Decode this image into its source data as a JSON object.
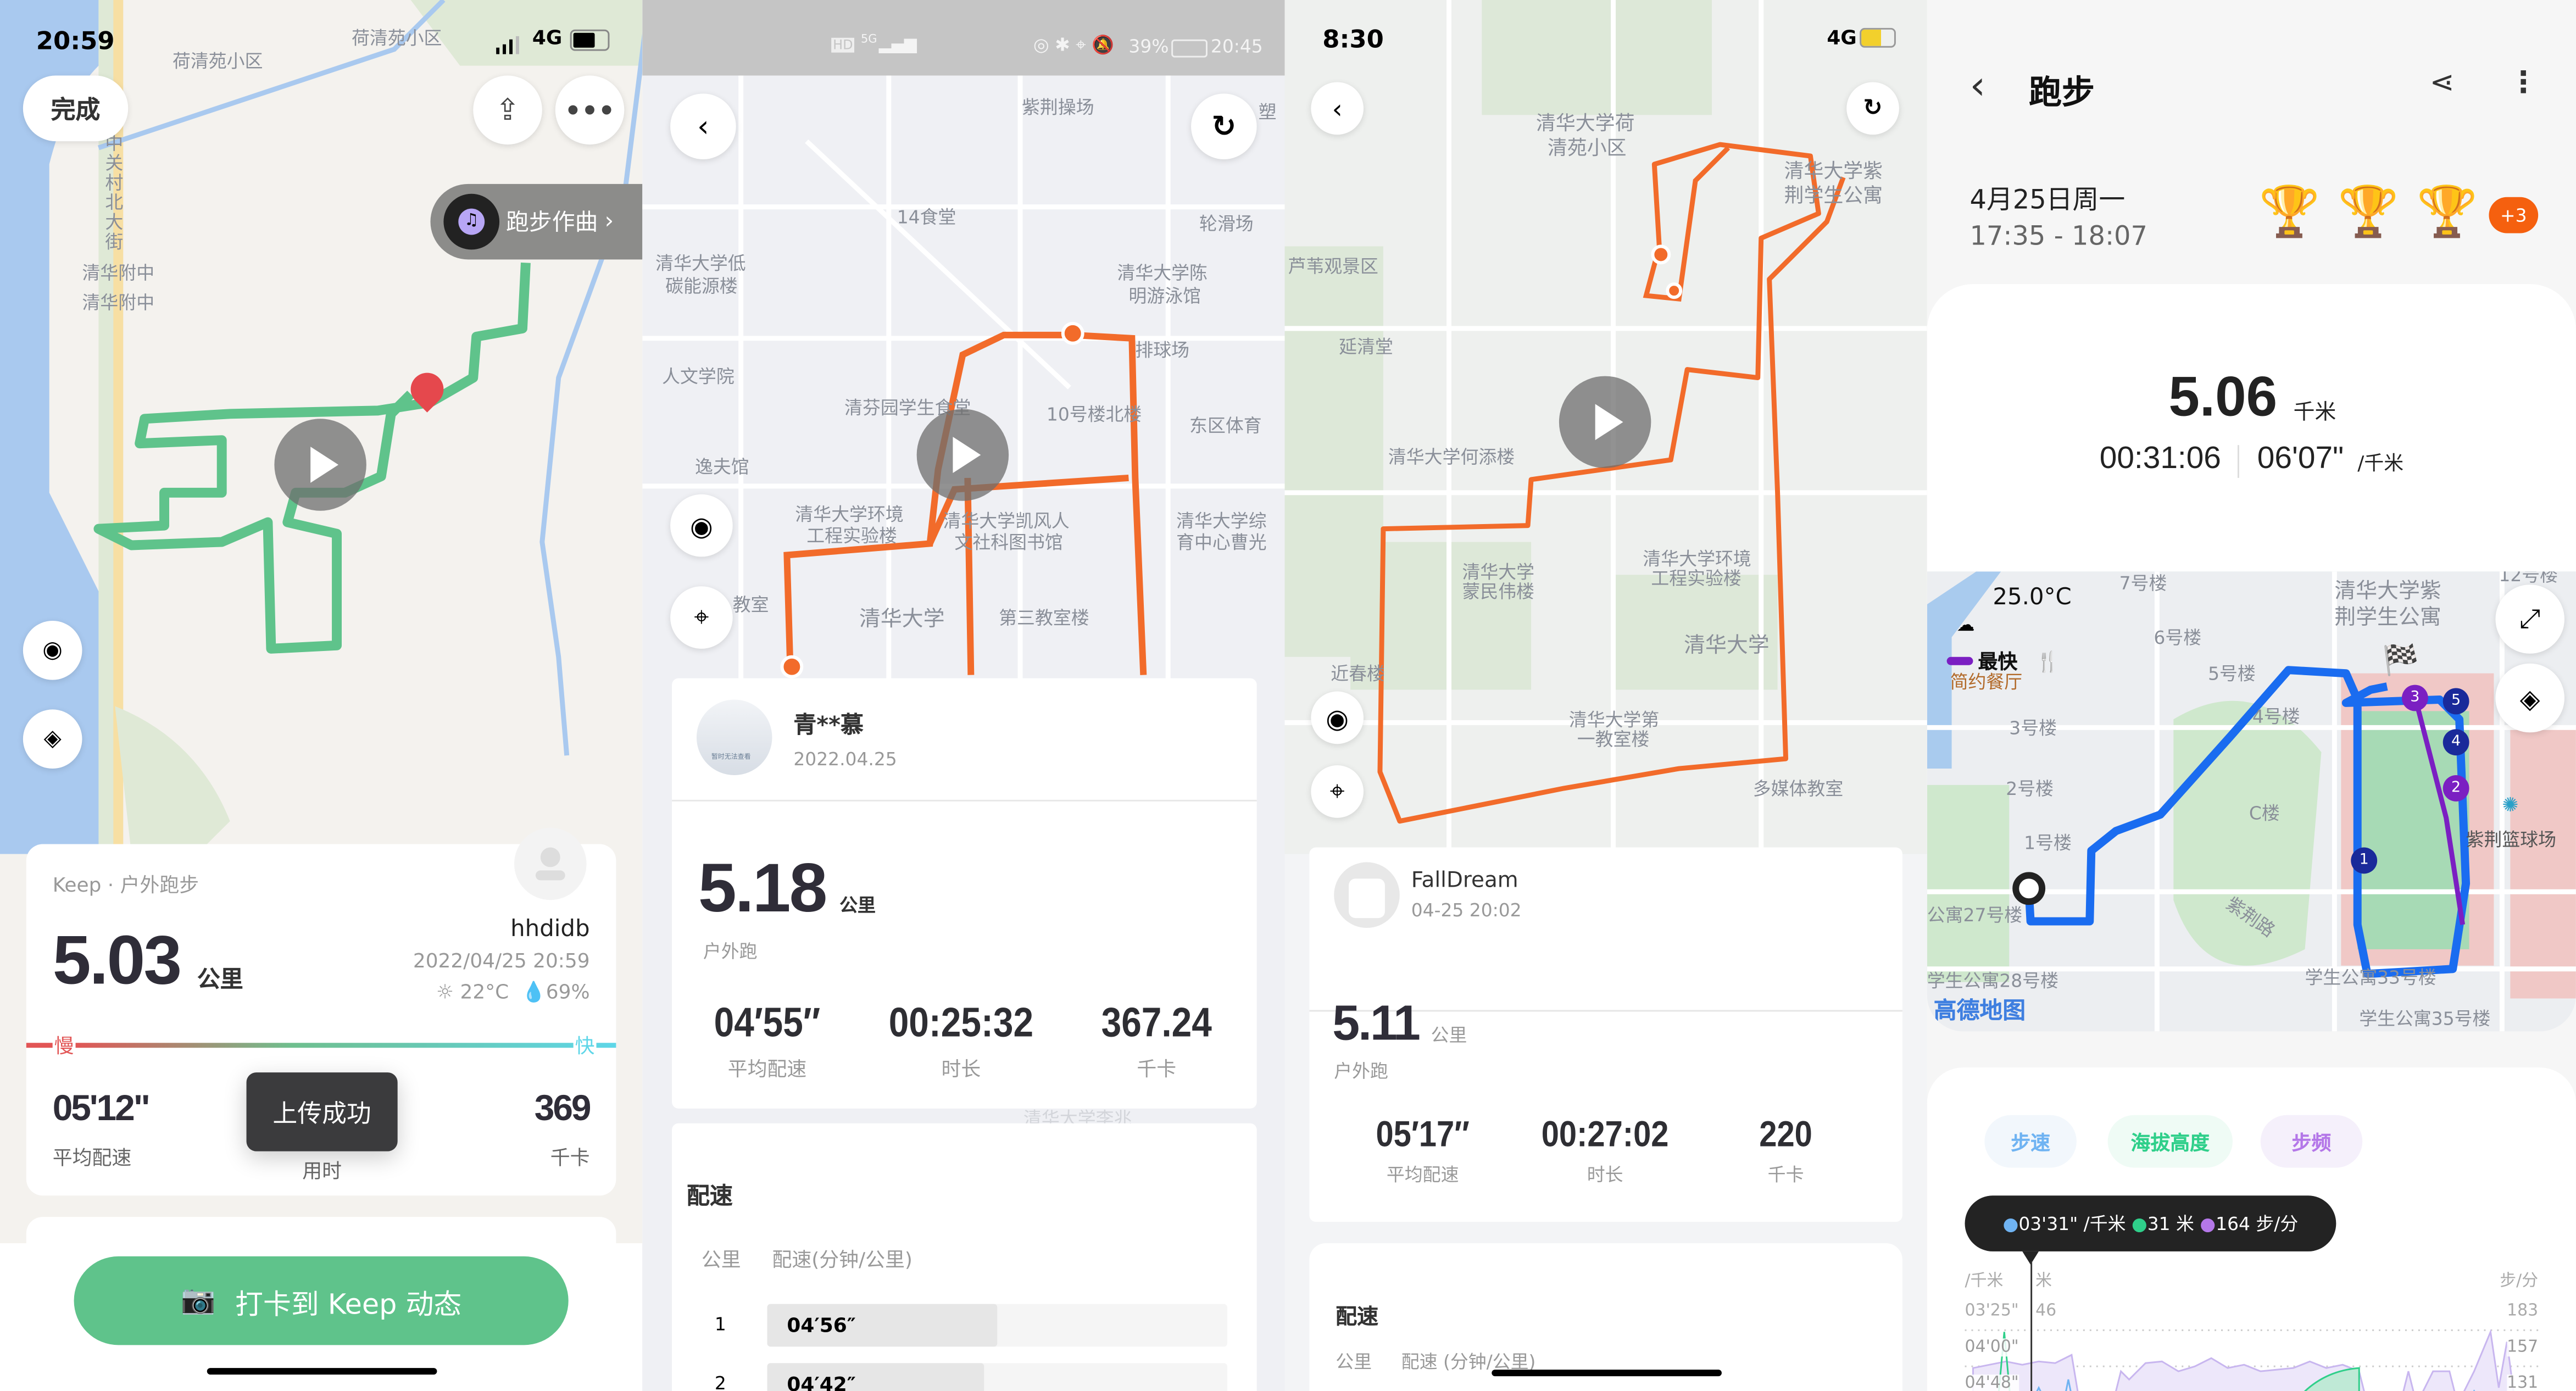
{
  "panel1": {
    "status": {
      "time": "20:59",
      "network": "4G"
    },
    "done_label": "完成",
    "compose_label": "跑步作曲",
    "map_labels": [
      "荷清苑小区",
      "荷清苑小区",
      "中关村北大街",
      "清华附中",
      "清华附中"
    ],
    "card": {
      "source": "Keep · 户外跑步",
      "distance": "5.03",
      "distance_unit": "公里",
      "username": "hhdidb",
      "datetime": "2022/04/25 20:59",
      "temperature": "22°C",
      "humidity": "69%",
      "slow_label": "慢",
      "fast_label": "快",
      "pace": "05'12\"",
      "pace_label": "平均配速",
      "duration_label": "用时",
      "calories": "369",
      "calories_label": "千卡"
    },
    "toast": "上传成功",
    "checkin_button": "打卡到 Keep 动态",
    "route_color": "#5fc38b"
  },
  "panel2": {
    "status": {
      "signal": "5G",
      "battery": "39%",
      "time": "20:45",
      "hd": "HD"
    },
    "map_labels": [
      "紫荆操场",
      "塑",
      "14食堂",
      "轮滑场",
      "清华大学低",
      "碳能源楼",
      "清华大学陈",
      "明游泳馆",
      "人文学院",
      "清芬园学生食堂",
      "10号楼北楼",
      "排球场",
      "东区体育",
      "逸夫馆",
      "清华大学环境",
      "工程实验楼",
      "清华大学凯风人",
      "文社科图书馆",
      "清华大学综",
      "育中心曹光",
      "清华大学",
      "第三教室楼",
      "教室",
      "清华大学李兆"
    ],
    "user": {
      "name": "青**慕",
      "date": "2022.04.25",
      "avatar_text": "暂时无法查看"
    },
    "distance": "5.18",
    "distance_unit": "公里",
    "type": "户外跑",
    "stats": [
      {
        "value": "04′55″",
        "label": "平均配速"
      },
      {
        "value": "00:25:32",
        "label": "时长"
      },
      {
        "value": "367.24",
        "label": "千卡"
      }
    ],
    "pace_section": {
      "title": "配速",
      "col_km": "公里",
      "col_pace": "配速(分钟/公里)",
      "rows": [
        {
          "km": "1",
          "pace": "04′56″",
          "fill": 0.5
        },
        {
          "km": "2",
          "pace": "04′42″",
          "fill": 0.47
        }
      ]
    },
    "route_color": "#f26b2a"
  },
  "panel3": {
    "status": {
      "time": "8:30",
      "network": "4G"
    },
    "map_labels": [
      "清华大学荷",
      "清苑小区",
      "清华大学紫",
      "荆学生公寓",
      "芦苇观景区",
      "延清堂",
      "清华大学何添楼",
      "清华大学",
      "蒙民伟楼",
      "清华大学环境",
      "工程实验楼",
      "清华大学",
      "近春楼",
      "清华大学第",
      "一教室楼",
      "多媒体教室"
    ],
    "user": {
      "name": "FallDream",
      "date": "04-25 20:02"
    },
    "distance": "5.11",
    "distance_unit": "公里",
    "type": "户外跑",
    "stats": [
      {
        "value": "05′17″",
        "label": "平均配速"
      },
      {
        "value": "00:27:02",
        "label": "时长"
      },
      {
        "value": "220",
        "label": "千卡"
      }
    ],
    "pace_section": {
      "title": "配速",
      "col_km": "公里",
      "col_pace": "配速 (分钟/公里)"
    },
    "route_color": "#f26b2a"
  },
  "panel4": {
    "title": "跑步",
    "date": "4月25日周一",
    "time_range": "17:35 - 18:07",
    "badge_more": "+3",
    "distance": "5.06",
    "distance_unit": "千米",
    "duration": "00:31:06",
    "pace": "06'07\"",
    "pace_unit": "/千米",
    "map": {
      "temperature": "25.0°C",
      "fastest_label": "最快",
      "labels": [
        "7号楼",
        "6号楼",
        "5号楼",
        "4号楼",
        "3号楼",
        "2号楼",
        "1号楼",
        "C楼",
        "紫荆路",
        "清华大学紫",
        "荆学生公寓",
        "12号楼",
        "紫荆篮球场",
        "简约餐厅",
        "公寓27号楼",
        "学生公寓28号楼",
        "学生公寓33号楼",
        "学生公寓35号楼"
      ],
      "km_markers": [
        "1",
        "2",
        "3",
        "4",
        "5"
      ],
      "provider": "高德地图",
      "route_color": "#1a6cf0",
      "fastest_color": "#7b1fc2"
    },
    "chart_tabs": [
      {
        "label": "步速",
        "color": "#6fb3f2"
      },
      {
        "label": "海拔高度",
        "color": "#2fcf8a"
      },
      {
        "label": "步频",
        "color": "#b477e8"
      }
    ],
    "tooltip": {
      "pace": "03'31\" /千米",
      "altitude": "31 米",
      "cadence": "164 步/分"
    },
    "axes": {
      "left_unit": "/千米",
      "mid_unit": "米",
      "right_unit": "步/分",
      "left_ticks": [
        "03'25\"",
        "04'00\"",
        "04'48\""
      ],
      "mid_ticks": [
        "46"
      ],
      "right_ticks": [
        "183",
        "157",
        "131"
      ]
    }
  }
}
